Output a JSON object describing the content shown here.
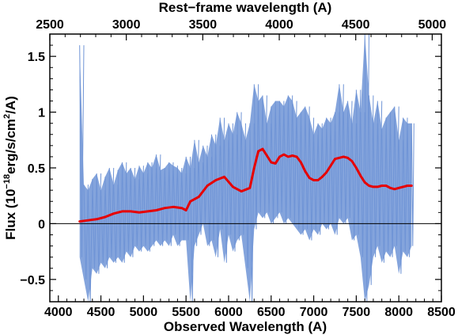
{
  "chart_data": {
    "type": "line",
    "title": "",
    "xlabel": "Observed Wavelength (A)",
    "x2label": "Rest−frame wavelength (A)",
    "ylabel_main": "Flux (10",
    "ylabel_exp": "−18",
    "ylabel_mid": "erg/s/cm",
    "ylabel_exp2": "2",
    "ylabel_tail": "/A)",
    "xlim": [
      3900,
      8500
    ],
    "ylim": [
      -0.7,
      1.7
    ],
    "x2lim": [
      2500,
      5060
    ],
    "xticks": [
      4000,
      4500,
      5000,
      5500,
      6000,
      6500,
      7000,
      7500,
      8000,
      8500
    ],
    "x2ticks": [
      2500,
      3000,
      3500,
      4000,
      4500,
      5000
    ],
    "yticks": [
      -0.5,
      0,
      0.5,
      1,
      1.5
    ],
    "ytick_labels": [
      "−0.5",
      "0",
      "0.5",
      "1",
      "1.5"
    ],
    "zero_line": 0,
    "colors": {
      "raw": "#6f94d6",
      "smooth": "#e60000",
      "axis": "#000000"
    },
    "series": [
      {
        "name": "",
        "style": "raw-band",
        "x": [
          4250,
          4300,
          4350,
          4400,
          4450,
          4500,
          4550,
          4600,
          4650,
          4700,
          4750,
          4800,
          4850,
          4900,
          4950,
          5000,
          5050,
          5100,
          5150,
          5200,
          5250,
          5300,
          5350,
          5400,
          5450,
          5500,
          5550,
          5600,
          5650,
          5700,
          5750,
          5800,
          5850,
          5900,
          5950,
          6000,
          6050,
          6100,
          6150,
          6200,
          6250,
          6300,
          6350,
          6400,
          6450,
          6500,
          6550,
          6600,
          6650,
          6700,
          6750,
          6800,
          6850,
          6900,
          6950,
          7000,
          7050,
          7100,
          7150,
          7200,
          7250,
          7300,
          7350,
          7400,
          7450,
          7500,
          7550,
          7600,
          7650,
          7700,
          7750,
          7800,
          7850,
          7900,
          7950,
          8000,
          8050,
          8100,
          8150
        ],
        "upper": [
          1.6,
          0.35,
          0.3,
          0.4,
          0.45,
          0.3,
          0.42,
          0.5,
          0.35,
          0.48,
          0.55,
          0.45,
          0.5,
          0.4,
          0.52,
          0.45,
          0.55,
          0.5,
          0.62,
          0.48,
          0.5,
          0.55,
          0.52,
          0.5,
          0.45,
          0.6,
          0.5,
          0.75,
          0.55,
          0.7,
          0.6,
          0.8,
          0.7,
          0.95,
          0.75,
          0.9,
          0.8,
          1.0,
          0.9,
          0.75,
          0.9,
          1.25,
          1.1,
          1.15,
          0.9,
          1.05,
          1.1,
          1.1,
          1.05,
          1.15,
          1.1,
          0.95,
          1.0,
          1.05,
          0.95,
          0.8,
          0.9,
          0.85,
          0.95,
          0.9,
          1.0,
          1.25,
          1.0,
          1.1,
          0.9,
          1.2,
          1.0,
          1.7,
          1.15,
          0.9,
          1.1,
          0.85,
          0.95,
          1.0,
          1.05,
          0.75,
          0.95,
          0.9,
          0.9
        ],
        "lower": [
          -0.3,
          -0.5,
          -0.7,
          -0.4,
          -0.45,
          -0.35,
          -0.4,
          -0.3,
          -0.35,
          -0.3,
          -0.35,
          -0.25,
          -0.3,
          -0.2,
          -0.25,
          -0.2,
          -0.25,
          -0.2,
          -0.15,
          -0.2,
          -0.15,
          -0.2,
          -0.1,
          -0.2,
          -0.15,
          -0.15,
          -0.7,
          -0.2,
          -0.1,
          0.0,
          -0.2,
          -0.15,
          -0.3,
          -0.05,
          -0.35,
          -0.1,
          -0.25,
          -0.15,
          -0.1,
          -0.4,
          -0.7,
          -0.05,
          0.1,
          0.05,
          0.1,
          0.0,
          0.05,
          0.1,
          0.0,
          0.05,
          0.0,
          -0.05,
          -0.1,
          -0.05,
          -0.15,
          -0.05,
          -0.1,
          0.0,
          -0.05,
          0.0,
          -0.1,
          0.05,
          0.0,
          0.05,
          -0.15,
          -0.1,
          -0.3,
          -0.7,
          -0.55,
          -0.3,
          -0.2,
          -0.35,
          -0.25,
          -0.3,
          -0.2,
          -0.45,
          -0.25,
          -0.3,
          -0.2
        ]
      },
      {
        "name": "",
        "style": "smooth",
        "x": [
          4250,
          4350,
          4450,
          4550,
          4650,
          4750,
          4850,
          4950,
          5050,
          5150,
          5250,
          5350,
          5450,
          5500,
          5550,
          5650,
          5750,
          5850,
          5950,
          6050,
          6150,
          6250,
          6300,
          6350,
          6400,
          6450,
          6500,
          6550,
          6600,
          6650,
          6700,
          6750,
          6800,
          6850,
          6900,
          6950,
          7000,
          7050,
          7100,
          7150,
          7200,
          7250,
          7300,
          7350,
          7400,
          7450,
          7500,
          7550,
          7600,
          7650,
          7700,
          7750,
          7800,
          7850,
          7900,
          7950,
          8000,
          8050,
          8100,
          8150
        ],
        "y": [
          0.02,
          0.03,
          0.04,
          0.06,
          0.09,
          0.11,
          0.11,
          0.1,
          0.11,
          0.12,
          0.14,
          0.15,
          0.14,
          0.12,
          0.2,
          0.24,
          0.34,
          0.39,
          0.42,
          0.33,
          0.29,
          0.32,
          0.5,
          0.65,
          0.67,
          0.61,
          0.55,
          0.54,
          0.6,
          0.62,
          0.6,
          0.61,
          0.6,
          0.55,
          0.47,
          0.41,
          0.39,
          0.39,
          0.42,
          0.46,
          0.52,
          0.58,
          0.59,
          0.6,
          0.59,
          0.56,
          0.5,
          0.43,
          0.37,
          0.34,
          0.33,
          0.33,
          0.34,
          0.34,
          0.32,
          0.31,
          0.32,
          0.33,
          0.34,
          0.34
        ]
      }
    ]
  }
}
